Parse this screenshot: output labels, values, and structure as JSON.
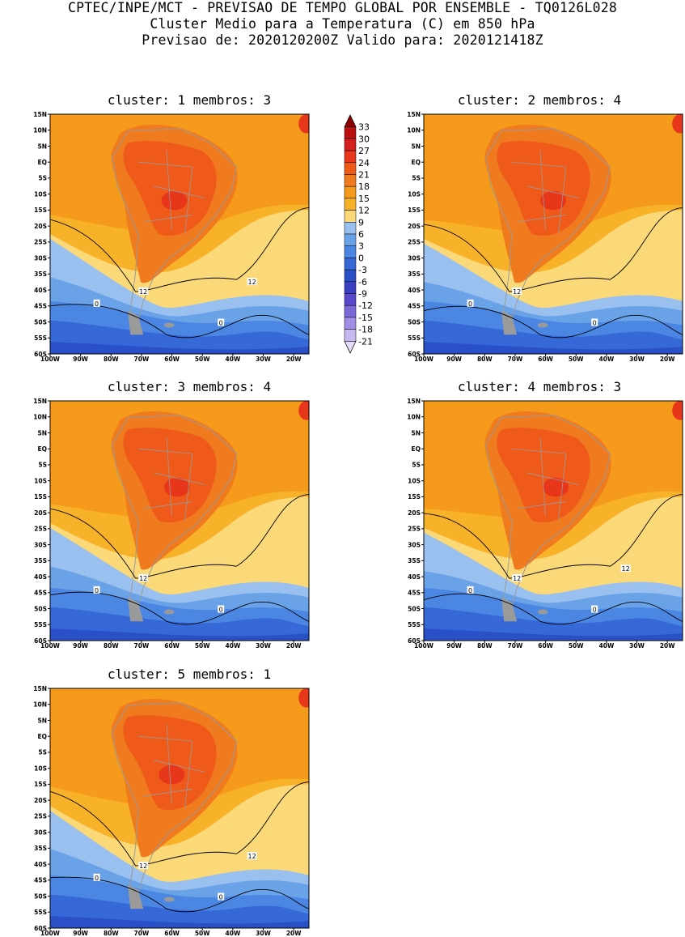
{
  "header": {
    "line1": "CPTEC/INPE/MCT - PREVISAO DE TEMPO GLOBAL POR ENSEMBLE - TQ0126L028",
    "line2": "Cluster Medio para a Temperatura (C) em 850 hPa",
    "line3": "Previsao de: 2020120200Z   Valido para: 2020121418Z"
  },
  "panels": [
    {
      "title": "cluster: 1   membros: 3",
      "labels12": [
        "12",
        "12"
      ],
      "labels0": [
        "0",
        "0"
      ]
    },
    {
      "title": "cluster: 2   membros: 4",
      "labels12": [
        "12"
      ],
      "labels0": [
        "0",
        "0"
      ]
    },
    {
      "title": "cluster: 3   membros: 4",
      "labels12": [
        "12"
      ],
      "labels0": [
        "0",
        "0"
      ]
    },
    {
      "title": "cluster: 4   membros: 3",
      "labels12": [
        "12",
        "12"
      ],
      "labels0": [
        "0",
        "0"
      ]
    },
    {
      "title": "cluster: 5   membros: 1",
      "labels12": [
        "12",
        "12"
      ],
      "labels0": [
        "0",
        "0"
      ]
    }
  ],
  "axes": {
    "lat_ticks": [
      "15N",
      "10N",
      "5N",
      "EQ",
      "5S",
      "10S",
      "15S",
      "20S",
      "25S",
      "30S",
      "35S",
      "40S",
      "45S",
      "50S",
      "55S",
      "60S"
    ],
    "lon_ticks": [
      "100W",
      "90W",
      "80W",
      "70W",
      "60W",
      "50W",
      "40W",
      "30W",
      "20W"
    ]
  },
  "colorbar": {
    "levels": [
      "33",
      "30",
      "27",
      "24",
      "21",
      "18",
      "15",
      "12",
      "9",
      "6",
      "3",
      "0",
      "-3",
      "-6",
      "-9",
      "-12",
      "-15",
      "-18",
      "-21"
    ],
    "colors": [
      "#8b0000",
      "#b80f0f",
      "#d42020",
      "#e8361a",
      "#ef5a1a",
      "#f07a1e",
      "#f59a1a",
      "#f7b22a",
      "#fbd878",
      "#99c0ee",
      "#6aa2e8",
      "#4a86e2",
      "#3668d8",
      "#2a50c8",
      "#3b3fc0",
      "#5a48cc",
      "#7d68d8",
      "#a28ee6",
      "#c8b8f0",
      "#e6dcf8"
    ]
  },
  "style": {
    "land_outline": "#9a9a9a",
    "contour": "#000000"
  }
}
